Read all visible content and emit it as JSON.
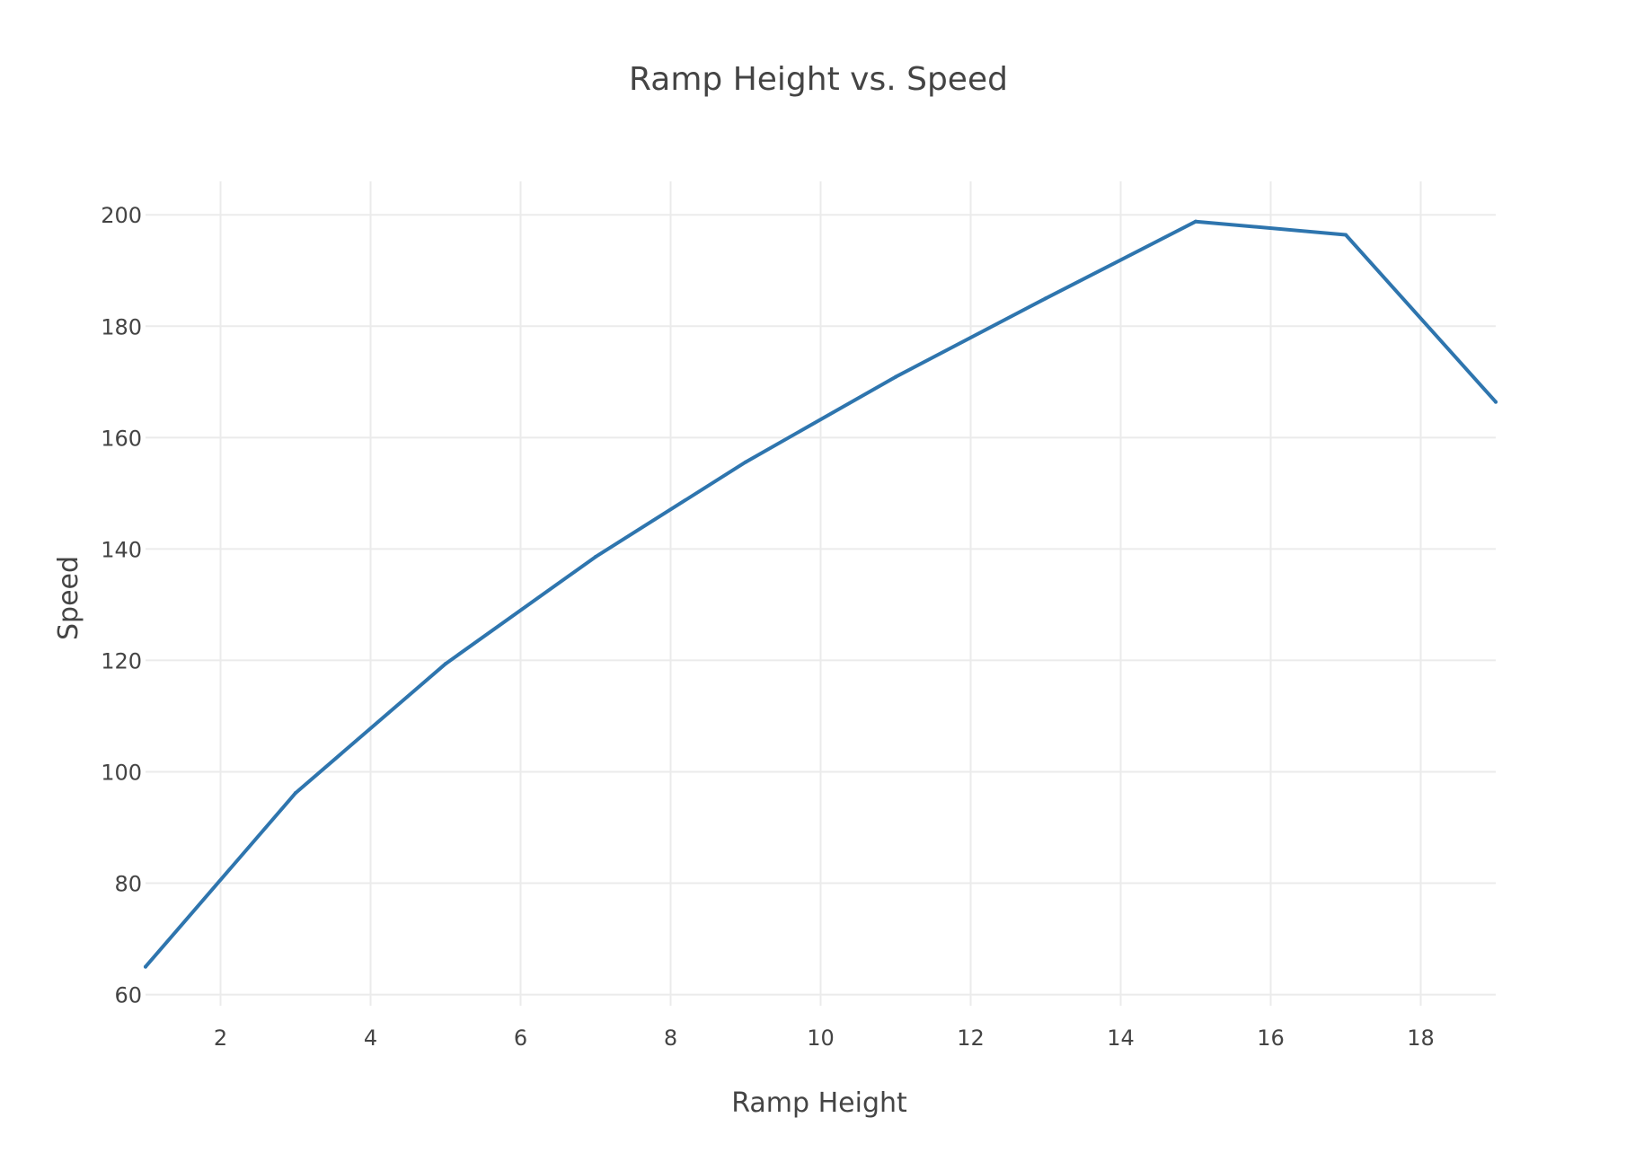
{
  "chart_data": {
    "type": "line",
    "title": "Ramp Height vs. Speed",
    "xlabel": "Ramp Height",
    "ylabel": "Speed",
    "xlim": [
      1,
      19
    ],
    "ylim": [
      58,
      206
    ],
    "xticks": [
      2,
      4,
      6,
      8,
      10,
      12,
      14,
      16,
      18
    ],
    "yticks": [
      60,
      80,
      100,
      120,
      140,
      160,
      180,
      200
    ],
    "grid": true,
    "series": [
      {
        "color": "#2e75ae",
        "x": [
          1,
          3,
          5,
          7,
          9,
          11,
          13,
          15,
          17,
          19
        ],
        "y": [
          65,
          96.2,
          119.4,
          138.6,
          155.6,
          170.9,
          185,
          198.8,
          196.4,
          166.4
        ]
      }
    ]
  }
}
